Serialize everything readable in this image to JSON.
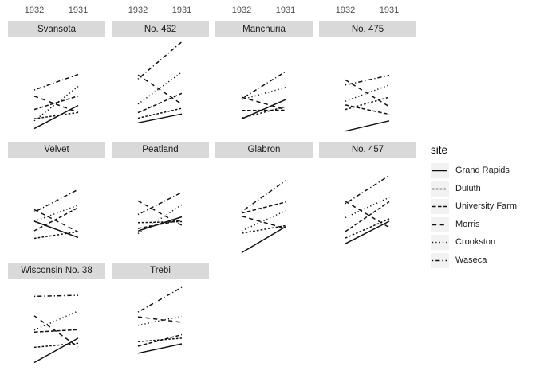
{
  "theme": {
    "strip_fill": "#d9d9d9",
    "axis_text_color": "#4d4d4d",
    "line_color": "#111111",
    "legend_key_fill": "#f2f2f2",
    "background": "#ffffff"
  },
  "chart_data": {
    "type": "line",
    "title": "",
    "legend_title": "site",
    "legend_position": "right",
    "grid": false,
    "x_axis_position": "top",
    "x": [
      "1932",
      "1931"
    ],
    "ylim": [
      11.9,
      68.3
    ],
    "legend": [
      {
        "label": "Grand Rapids",
        "linetype": "solid",
        "dash": ""
      },
      {
        "label": "Duluth",
        "linetype": "dash22",
        "dash": "2.6 2.2"
      },
      {
        "label": "University Farm",
        "linetype": "dash42",
        "dash": "4.6 2.4"
      },
      {
        "label": "Morris",
        "linetype": "dash44",
        "dash": "5.2 4.4"
      },
      {
        "label": "Crookston",
        "linetype": "dotted",
        "dash": "1.2 3.1"
      },
      {
        "label": "Waseca",
        "linetype": "dotdash",
        "dash": "1.2 3 5.2 3"
      }
    ],
    "facets": [
      {
        "title": "Svansota",
        "series": [
          {
            "name": "Grand Rapids",
            "values": [
              16.6,
              29.7
            ]
          },
          {
            "name": "Duluth",
            "values": [
              22.2,
              25.7
            ]
          },
          {
            "name": "University Farm",
            "values": [
              27.4,
              35.1
            ]
          },
          {
            "name": "Morris",
            "values": [
              35.0,
              25.8
            ]
          },
          {
            "name": "Crookston",
            "values": [
              21.0,
              40.5
            ]
          },
          {
            "name": "Waseca",
            "values": [
              38.5,
              47.3
            ]
          }
        ]
      },
      {
        "title": "No. 462",
        "series": [
          {
            "name": "Grand Rapids",
            "values": [
              19.9,
              24.9
            ]
          },
          {
            "name": "Duluth",
            "values": [
              22.5,
              28.1
            ]
          },
          {
            "name": "University Farm",
            "values": [
              25.6,
              36.6
            ]
          },
          {
            "name": "Morris",
            "values": [
              47.0,
              30.4
            ]
          },
          {
            "name": "Crookston",
            "values": [
              30.5,
              48.6
            ]
          },
          {
            "name": "Waseca",
            "values": [
              44.7,
              65.8
            ]
          }
        ]
      },
      {
        "title": "Manchuria",
        "series": [
          {
            "name": "Grand Rapids",
            "values": [
              22.1,
              33.0
            ]
          },
          {
            "name": "Duluth",
            "values": [
              22.6,
              29.0
            ]
          },
          {
            "name": "University Farm",
            "values": [
              26.9,
              27.0
            ]
          },
          {
            "name": "Morris",
            "values": [
              34.4,
              27.4
            ]
          },
          {
            "name": "Crookston",
            "values": [
              33.0,
              39.9
            ]
          },
          {
            "name": "Waseca",
            "values": [
              33.5,
              48.9
            ]
          }
        ]
      },
      {
        "title": "No. 475",
        "series": [
          {
            "name": "Grand Rapids",
            "values": [
              15.2,
              21.0
            ]
          },
          {
            "name": "Duluth",
            "values": [
              27.4,
              34.4
            ]
          },
          {
            "name": "University Farm",
            "values": [
              30.0,
              24.7
            ]
          },
          {
            "name": "Morris",
            "values": [
              44.2,
              29.1
            ]
          },
          {
            "name": "Crookston",
            "values": [
              32.1,
              41.3
            ]
          },
          {
            "name": "Waseca",
            "values": [
              41.3,
              46.8
            ]
          }
        ]
      },
      {
        "title": "Velvet",
        "series": [
          {
            "name": "Grand Rapids",
            "values": [
              32.2,
              23.0
            ]
          },
          {
            "name": "Duluth",
            "values": [
              22.5,
              26.3
            ]
          },
          {
            "name": "University Farm",
            "values": [
              26.8,
              39.9
            ]
          },
          {
            "name": "Morris",
            "values": [
              38.8,
              26.1
            ]
          },
          {
            "name": "Crookston",
            "values": [
              32.1,
              41.3
            ]
          },
          {
            "name": "Waseca",
            "values": [
              37.4,
              50.2
            ]
          }
        ]
      },
      {
        "title": "Peatland",
        "series": [
          {
            "name": "Grand Rapids",
            "values": [
              26.7,
              34.7
            ]
          },
          {
            "name": "Duluth",
            "values": [
              31.4,
              32.0
            ]
          },
          {
            "name": "University Farm",
            "values": [
              28.1,
              32.8
            ]
          },
          {
            "name": "Morris",
            "values": [
              43.8,
              29.9
            ]
          },
          {
            "name": "Crookston",
            "values": [
              25.2,
              41.6
            ]
          },
          {
            "name": "Waseca",
            "values": [
              36.0,
              48.6
            ]
          }
        ]
      },
      {
        "title": "Glabron",
        "series": [
          {
            "name": "Grand Rapids",
            "values": [
              14.4,
              29.1
            ]
          },
          {
            "name": "Duluth",
            "values": [
              25.4,
              29.7
            ]
          },
          {
            "name": "University Farm",
            "values": [
              36.8,
              43.1
            ]
          },
          {
            "name": "Morris",
            "values": [
              35.1,
              28.1
            ]
          },
          {
            "name": "Crookston",
            "values": [
              26.8,
              38.1
            ]
          },
          {
            "name": "Waseca",
            "values": [
              37.7,
              55.2
            ]
          }
        ]
      },
      {
        "title": "No. 457",
        "series": [
          {
            "name": "Grand Rapids",
            "values": [
              19.5,
              32.2
            ]
          },
          {
            "name": "Duluth",
            "values": [
              22.7,
              33.6
            ]
          },
          {
            "name": "University Farm",
            "values": [
              26.4,
              43.3
            ]
          },
          {
            "name": "Morris",
            "values": [
              43.5,
              28.7
            ]
          },
          {
            "name": "Crookston",
            "values": [
              34.3,
              45.7
            ]
          },
          {
            "name": "Waseca",
            "values": [
              42.2,
              58.1
            ]
          }
        ]
      },
      {
        "title": "Wisconsin No. 38",
        "series": [
          {
            "name": "Grand Rapids",
            "values": [
              20.7,
              34.5
            ]
          },
          {
            "name": "Duluth",
            "values": [
              29.3,
              31.6
            ]
          },
          {
            "name": "University Farm",
            "values": [
              38.0,
              39.3
            ]
          },
          {
            "name": "Morris",
            "values": [
              47.2,
              29.5
            ]
          },
          {
            "name": "Crookston",
            "values": [
              39.1,
              49.9
            ]
          },
          {
            "name": "Waseca",
            "values": [
              58.2,
              58.8
            ]
          }
        ]
      },
      {
        "title": "Trebi",
        "series": [
          {
            "name": "Grand Rapids",
            "values": [
              26.0,
              31.3
            ]
          },
          {
            "name": "Duluth",
            "values": [
              32.5,
              34.5
            ]
          },
          {
            "name": "University Farm",
            "values": [
              30.0,
              36.5
            ]
          },
          {
            "name": "Morris",
            "values": [
              46.6,
              43.5
            ]
          },
          {
            "name": "Crookston",
            "values": [
              41.8,
              46.9
            ]
          },
          {
            "name": "Waseca",
            "values": [
              49.3,
              63.3
            ]
          }
        ]
      }
    ]
  }
}
